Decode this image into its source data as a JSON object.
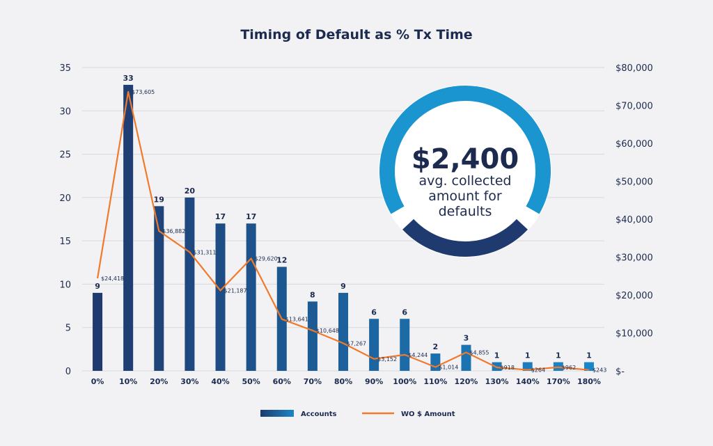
{
  "chart_data": {
    "type": "bar",
    "title": "Timing of Default as % Tx Time",
    "categories": [
      "0%",
      "10%",
      "20%",
      "30%",
      "40%",
      "50%",
      "60%",
      "70%",
      "80%",
      "90%",
      "100%",
      "110%",
      "120%",
      "130%",
      "140%",
      "170%",
      "180%"
    ],
    "series": [
      {
        "name": "Accounts",
        "type": "bar",
        "axis": "left",
        "values": [
          9,
          33,
          19,
          20,
          17,
          17,
          12,
          8,
          9,
          6,
          6,
          2,
          3,
          1,
          1,
          1,
          1
        ],
        "labels": [
          "9",
          "33",
          "19",
          "20",
          "17",
          "17",
          "12",
          "8",
          "9",
          "6",
          "6",
          "2",
          "3",
          "1",
          "1",
          "1",
          "1"
        ]
      },
      {
        "name": "WO $ Amount",
        "type": "line",
        "axis": "right",
        "values": [
          24418,
          73605,
          36882,
          31311,
          21187,
          29620,
          13641,
          10648,
          7267,
          3152,
          4244,
          1014,
          4855,
          918,
          264,
          962,
          243
        ],
        "labels": [
          "$24,418",
          "$73,605",
          "$36,882",
          "$31,311",
          "$21,187",
          "$29,620",
          "$13,641",
          "$10,648",
          "$7,267",
          "$3,152",
          "$4,244",
          "$1,014",
          "$4,855",
          "$918",
          "$264",
          "$962",
          "$243"
        ]
      }
    ],
    "y_left": {
      "ylim": [
        0,
        35
      ],
      "ticks": [
        "0",
        "5",
        "10",
        "15",
        "20",
        "25",
        "30",
        "35"
      ]
    },
    "y_right": {
      "ylim": [
        0,
        80000
      ],
      "ticks": [
        "$-",
        "$10,000",
        "$20,000",
        "$30,000",
        "$40,000",
        "$50,000",
        "$60,000",
        "$70,000",
        "$80,000"
      ]
    },
    "grid": true,
    "legend": "bottom-center",
    "colors": {
      "bar_dark": "#1f3a6e",
      "bar_light": "#1a86c8",
      "line": "#f07a2b",
      "grid": "#d6d8de",
      "text": "#1b2a4e"
    }
  },
  "callout": {
    "value": "$2,400",
    "lines": [
      "avg. collected",
      "amount for",
      "defaults"
    ],
    "ring_top_color": "#1a95d0",
    "ring_bottom_color": "#1f3a6e"
  }
}
